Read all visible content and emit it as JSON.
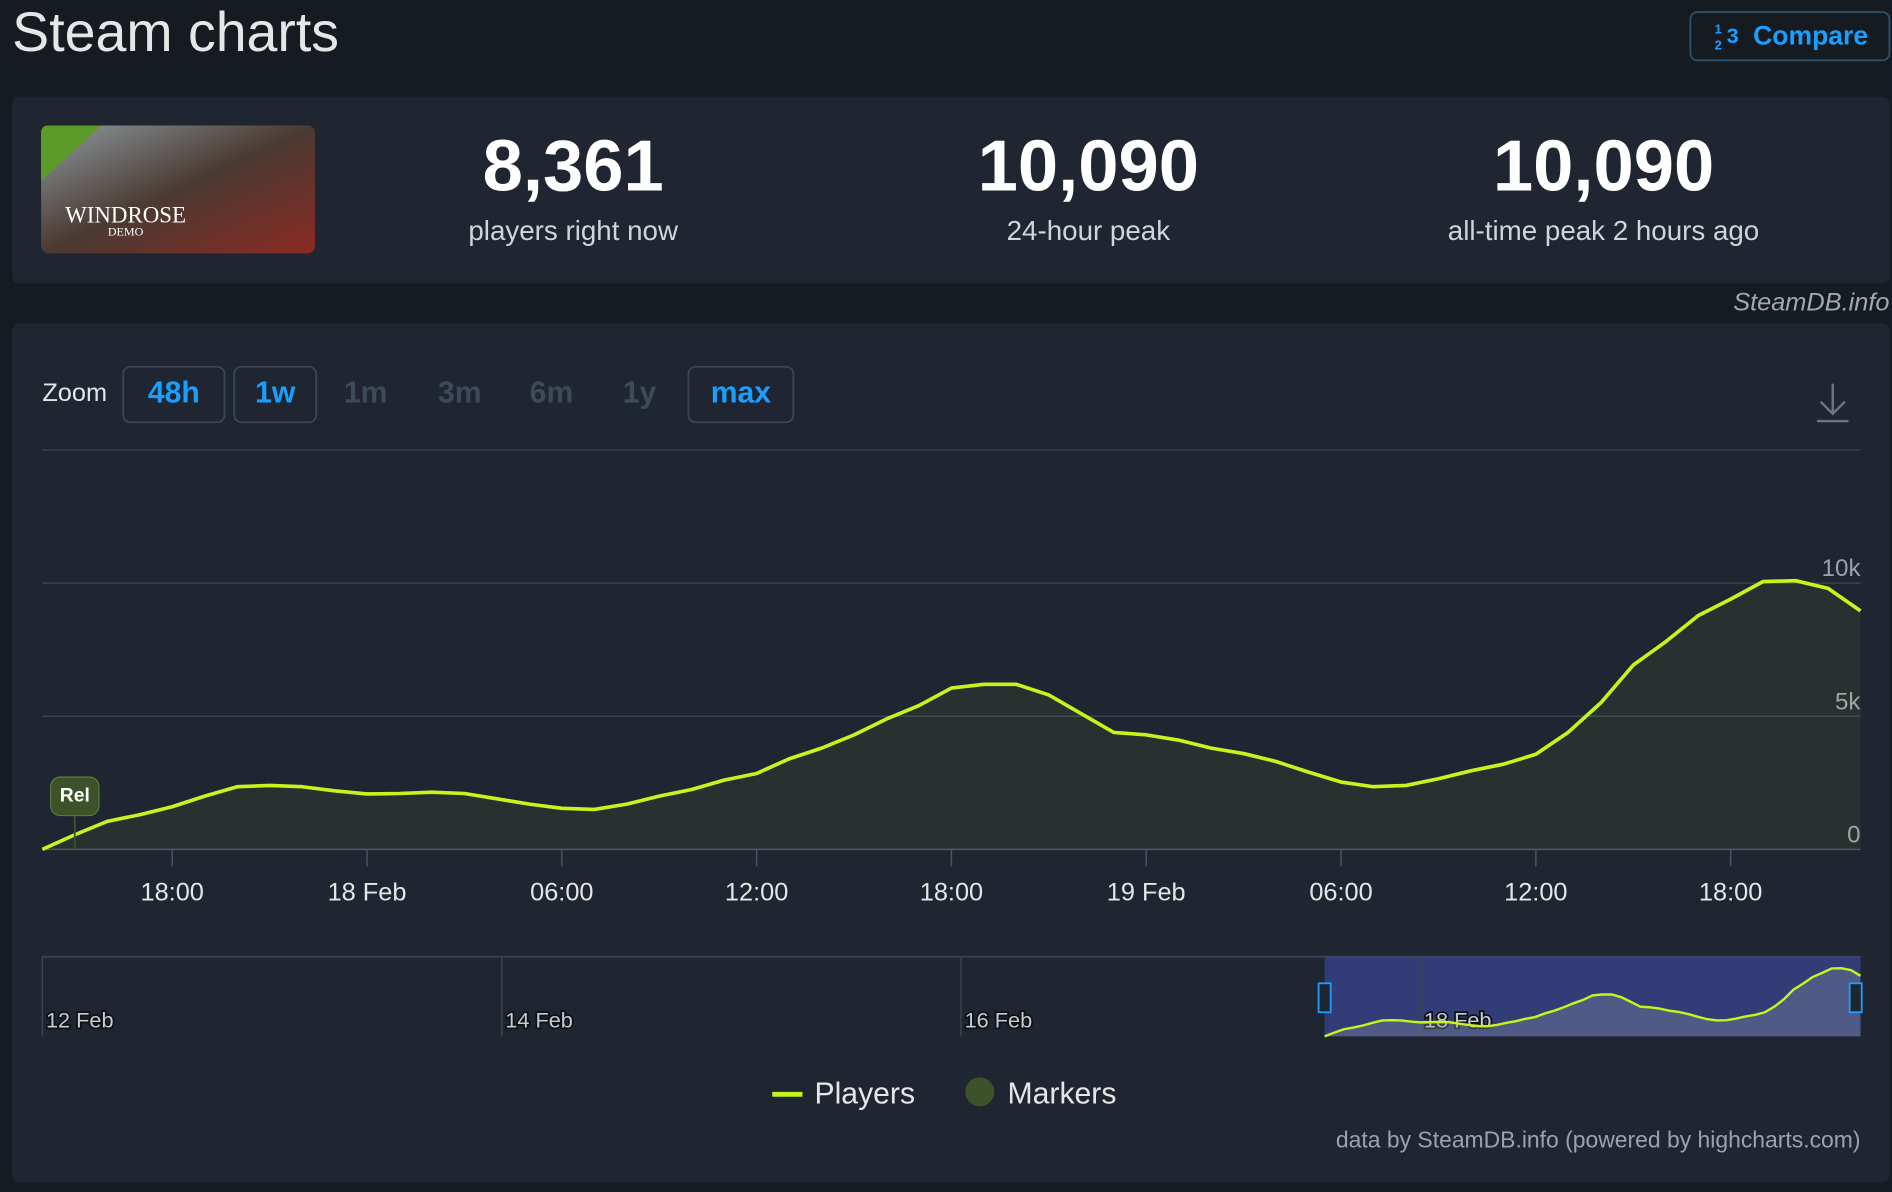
{
  "header": {
    "title": "Steam charts",
    "compare": "Compare"
  },
  "game": {
    "title": "WINDROSE",
    "subtitle": "DEMO"
  },
  "stats": [
    {
      "value": "8,361",
      "label": "players right now"
    },
    {
      "value": "10,090",
      "label": "24-hour peak"
    },
    {
      "value": "10,090",
      "label": "all-time peak 2 hours ago"
    }
  ],
  "watermark": "SteamDB.info",
  "zoom": {
    "label": "Zoom",
    "buttons": [
      {
        "text": "48h",
        "active": true
      },
      {
        "text": "1w",
        "active": true
      },
      {
        "text": "1m",
        "active": false
      },
      {
        "text": "3m",
        "active": false
      },
      {
        "text": "6m",
        "active": false
      },
      {
        "text": "1y",
        "active": false
      },
      {
        "text": "max",
        "active": true
      }
    ]
  },
  "credit": "data by SteamDB.info (powered by highcharts.com)",
  "chart_data": {
    "type": "line",
    "x": [
      "17 Feb 14:00",
      "17 Feb 15:00",
      "17 Feb 16:00",
      "17 Feb 17:00",
      "17 Feb 18:00",
      "17 Feb 19:00",
      "17 Feb 20:00",
      "17 Feb 21:00",
      "17 Feb 22:00",
      "17 Feb 23:00",
      "18 Feb 00:00",
      "18 Feb 01:00",
      "18 Feb 02:00",
      "18 Feb 03:00",
      "18 Feb 04:00",
      "18 Feb 05:00",
      "18 Feb 06:00",
      "18 Feb 07:00",
      "18 Feb 08:00",
      "18 Feb 09:00",
      "18 Feb 10:00",
      "18 Feb 11:00",
      "18 Feb 12:00",
      "18 Feb 13:00",
      "18 Feb 14:00",
      "18 Feb 15:00",
      "18 Feb 16:00",
      "18 Feb 17:00",
      "18 Feb 18:00",
      "18 Feb 19:00",
      "18 Feb 20:00",
      "18 Feb 21:00",
      "18 Feb 22:00",
      "18 Feb 23:00",
      "19 Feb 00:00",
      "19 Feb 01:00",
      "19 Feb 02:00",
      "19 Feb 03:00",
      "19 Feb 04:00",
      "19 Feb 05:00",
      "19 Feb 06:00",
      "19 Feb 07:00",
      "19 Feb 08:00",
      "19 Feb 09:00",
      "19 Feb 10:00",
      "19 Feb 11:00",
      "19 Feb 12:00",
      "19 Feb 13:00",
      "19 Feb 14:00",
      "19 Feb 15:00",
      "19 Feb 16:00",
      "19 Feb 17:00",
      "19 Feb 18:00",
      "19 Feb 19:00",
      "19 Feb 20:00",
      "19 Feb 21:00",
      "19 Feb 22:00"
    ],
    "series": [
      {
        "name": "Players",
        "color": "#c6f51b",
        "values": [
          0,
          550,
          1050,
          1300,
          1600,
          2000,
          2350,
          2400,
          2350,
          2200,
          2080,
          2100,
          2150,
          2100,
          1900,
          1700,
          1540,
          1500,
          1700,
          2000,
          2250,
          2600,
          2850,
          3400,
          3800,
          4300,
          4900,
          5400,
          6060,
          6200,
          6200,
          5800,
          5100,
          4390,
          4300,
          4100,
          3800,
          3600,
          3300,
          2900,
          2530,
          2350,
          2400,
          2650,
          2950,
          3200,
          3570,
          4400,
          5500,
          6920,
          7800,
          8780,
          9400,
          10060,
          10090,
          9800,
          8960
        ]
      }
    ],
    "markers": {
      "name": "Markers",
      "color": "#3d5228",
      "items": [
        {
          "x": "17 Feb 15:00",
          "label": "Rel"
        }
      ]
    },
    "xlim": [
      "17 Feb 14:00",
      "19 Feb 22:00"
    ],
    "xticks": [
      {
        "value": "17 Feb 18:00",
        "label": "18:00"
      },
      {
        "value": "18 Feb 00:00",
        "label": "18 Feb"
      },
      {
        "value": "18 Feb 06:00",
        "label": "06:00"
      },
      {
        "value": "18 Feb 12:00",
        "label": "12:00"
      },
      {
        "value": "18 Feb 18:00",
        "label": "18:00"
      },
      {
        "value": "19 Feb 00:00",
        "label": "19 Feb"
      },
      {
        "value": "19 Feb 06:00",
        "label": "06:00"
      },
      {
        "value": "19 Feb 12:00",
        "label": "12:00"
      },
      {
        "value": "19 Feb 18:00",
        "label": "18:00"
      }
    ],
    "ylim": [
      0,
      15000
    ],
    "yticks": [
      0,
      {
        "value": 5000,
        "label": "5k"
      },
      {
        "value": 10000,
        "label": "10k"
      }
    ],
    "grid": true,
    "navigator": {
      "xlim": [
        "12 Feb 00:00",
        "19 Feb 22:00"
      ],
      "xticks": [
        {
          "value": "12 Feb 00:00",
          "label": "12 Feb"
        },
        {
          "value": "14 Feb 00:00",
          "label": "14 Feb"
        },
        {
          "value": "16 Feb 00:00",
          "label": "16 Feb"
        },
        {
          "value": "18 Feb 00:00",
          "label": "18 Feb"
        }
      ]
    }
  }
}
